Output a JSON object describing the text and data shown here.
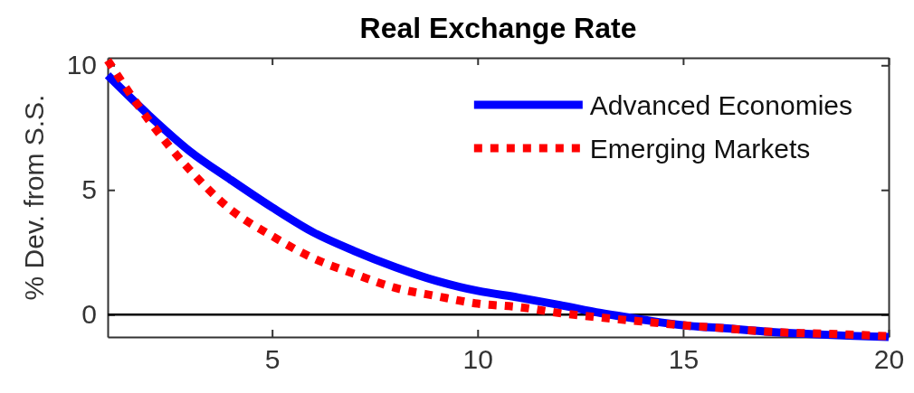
{
  "chart_data": {
    "type": "line",
    "title": "Real Exchange Rate",
    "ylabel": "% Dev. from S.S.",
    "x": [
      1,
      2,
      3,
      4,
      5,
      6,
      7,
      8,
      9,
      10,
      11,
      12,
      13,
      14,
      15,
      16,
      17,
      18,
      19,
      20
    ],
    "series": [
      {
        "name": "Advanced Economies",
        "color": "#0000ff",
        "line_style": "solid",
        "values": [
          9.6,
          8.0,
          6.55,
          5.4,
          4.3,
          3.3,
          2.55,
          1.9,
          1.35,
          0.95,
          0.68,
          0.38,
          0.06,
          -0.2,
          -0.43,
          -0.55,
          -0.68,
          -0.77,
          -0.85,
          -0.9
        ]
      },
      {
        "name": "Emerging Markets",
        "color": "#ff0000",
        "line_style": "dotted",
        "values": [
          10.2,
          7.8,
          5.8,
          4.2,
          3.15,
          2.26,
          1.63,
          1.07,
          0.74,
          0.44,
          0.3,
          0.06,
          -0.12,
          -0.28,
          -0.43,
          -0.55,
          -0.68,
          -0.75,
          -0.8,
          -0.87
        ]
      }
    ],
    "xlim": [
      1,
      20
    ],
    "xticks": [
      5,
      10,
      15,
      20
    ],
    "ylim": [
      -0.9,
      10.3
    ],
    "yticks": [
      0,
      5,
      10
    ],
    "ref_lines": [
      {
        "axis": "y",
        "value": 0,
        "color": "#000000"
      }
    ],
    "legend": "top right",
    "grid": false
  }
}
